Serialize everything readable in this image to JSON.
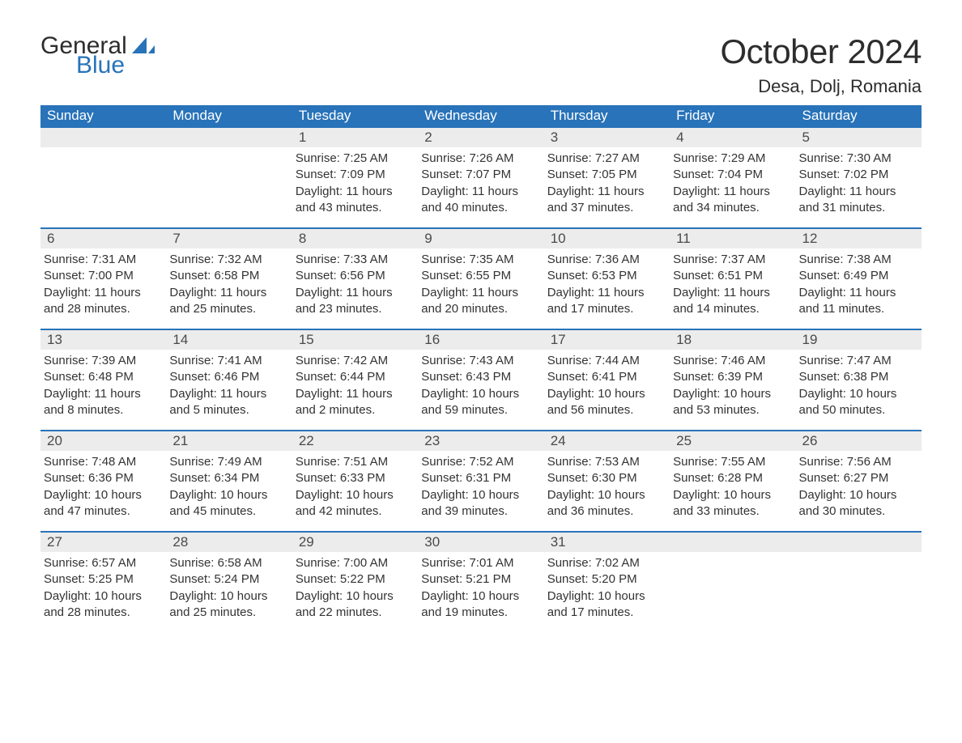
{
  "logo": {
    "text_general": "General",
    "text_blue": "Blue",
    "sail_color": "#2873b9"
  },
  "title": {
    "month": "October 2024",
    "location": "Desa, Dolj, Romania"
  },
  "colors": {
    "header_bg": "#2873b9",
    "header_text": "#ffffff",
    "daynum_bg": "#ececec",
    "rule": "#2873b9",
    "body_text": "#333333"
  },
  "weekdays": [
    "Sunday",
    "Monday",
    "Tuesday",
    "Wednesday",
    "Thursday",
    "Friday",
    "Saturday"
  ],
  "weeks": [
    [
      {
        "day": "",
        "sunrise": "",
        "sunset": "",
        "daylight_a": "",
        "daylight_b": ""
      },
      {
        "day": "",
        "sunrise": "",
        "sunset": "",
        "daylight_a": "",
        "daylight_b": ""
      },
      {
        "day": "1",
        "sunrise": "Sunrise: 7:25 AM",
        "sunset": "Sunset: 7:09 PM",
        "daylight_a": "Daylight: 11 hours",
        "daylight_b": "and 43 minutes."
      },
      {
        "day": "2",
        "sunrise": "Sunrise: 7:26 AM",
        "sunset": "Sunset: 7:07 PM",
        "daylight_a": "Daylight: 11 hours",
        "daylight_b": "and 40 minutes."
      },
      {
        "day": "3",
        "sunrise": "Sunrise: 7:27 AM",
        "sunset": "Sunset: 7:05 PM",
        "daylight_a": "Daylight: 11 hours",
        "daylight_b": "and 37 minutes."
      },
      {
        "day": "4",
        "sunrise": "Sunrise: 7:29 AM",
        "sunset": "Sunset: 7:04 PM",
        "daylight_a": "Daylight: 11 hours",
        "daylight_b": "and 34 minutes."
      },
      {
        "day": "5",
        "sunrise": "Sunrise: 7:30 AM",
        "sunset": "Sunset: 7:02 PM",
        "daylight_a": "Daylight: 11 hours",
        "daylight_b": "and 31 minutes."
      }
    ],
    [
      {
        "day": "6",
        "sunrise": "Sunrise: 7:31 AM",
        "sunset": "Sunset: 7:00 PM",
        "daylight_a": "Daylight: 11 hours",
        "daylight_b": "and 28 minutes."
      },
      {
        "day": "7",
        "sunrise": "Sunrise: 7:32 AM",
        "sunset": "Sunset: 6:58 PM",
        "daylight_a": "Daylight: 11 hours",
        "daylight_b": "and 25 minutes."
      },
      {
        "day": "8",
        "sunrise": "Sunrise: 7:33 AM",
        "sunset": "Sunset: 6:56 PM",
        "daylight_a": "Daylight: 11 hours",
        "daylight_b": "and 23 minutes."
      },
      {
        "day": "9",
        "sunrise": "Sunrise: 7:35 AM",
        "sunset": "Sunset: 6:55 PM",
        "daylight_a": "Daylight: 11 hours",
        "daylight_b": "and 20 minutes."
      },
      {
        "day": "10",
        "sunrise": "Sunrise: 7:36 AM",
        "sunset": "Sunset: 6:53 PM",
        "daylight_a": "Daylight: 11 hours",
        "daylight_b": "and 17 minutes."
      },
      {
        "day": "11",
        "sunrise": "Sunrise: 7:37 AM",
        "sunset": "Sunset: 6:51 PM",
        "daylight_a": "Daylight: 11 hours",
        "daylight_b": "and 14 minutes."
      },
      {
        "day": "12",
        "sunrise": "Sunrise: 7:38 AM",
        "sunset": "Sunset: 6:49 PM",
        "daylight_a": "Daylight: 11 hours",
        "daylight_b": "and 11 minutes."
      }
    ],
    [
      {
        "day": "13",
        "sunrise": "Sunrise: 7:39 AM",
        "sunset": "Sunset: 6:48 PM",
        "daylight_a": "Daylight: 11 hours",
        "daylight_b": "and 8 minutes."
      },
      {
        "day": "14",
        "sunrise": "Sunrise: 7:41 AM",
        "sunset": "Sunset: 6:46 PM",
        "daylight_a": "Daylight: 11 hours",
        "daylight_b": "and 5 minutes."
      },
      {
        "day": "15",
        "sunrise": "Sunrise: 7:42 AM",
        "sunset": "Sunset: 6:44 PM",
        "daylight_a": "Daylight: 11 hours",
        "daylight_b": "and 2 minutes."
      },
      {
        "day": "16",
        "sunrise": "Sunrise: 7:43 AM",
        "sunset": "Sunset: 6:43 PM",
        "daylight_a": "Daylight: 10 hours",
        "daylight_b": "and 59 minutes."
      },
      {
        "day": "17",
        "sunrise": "Sunrise: 7:44 AM",
        "sunset": "Sunset: 6:41 PM",
        "daylight_a": "Daylight: 10 hours",
        "daylight_b": "and 56 minutes."
      },
      {
        "day": "18",
        "sunrise": "Sunrise: 7:46 AM",
        "sunset": "Sunset: 6:39 PM",
        "daylight_a": "Daylight: 10 hours",
        "daylight_b": "and 53 minutes."
      },
      {
        "day": "19",
        "sunrise": "Sunrise: 7:47 AM",
        "sunset": "Sunset: 6:38 PM",
        "daylight_a": "Daylight: 10 hours",
        "daylight_b": "and 50 minutes."
      }
    ],
    [
      {
        "day": "20",
        "sunrise": "Sunrise: 7:48 AM",
        "sunset": "Sunset: 6:36 PM",
        "daylight_a": "Daylight: 10 hours",
        "daylight_b": "and 47 minutes."
      },
      {
        "day": "21",
        "sunrise": "Sunrise: 7:49 AM",
        "sunset": "Sunset: 6:34 PM",
        "daylight_a": "Daylight: 10 hours",
        "daylight_b": "and 45 minutes."
      },
      {
        "day": "22",
        "sunrise": "Sunrise: 7:51 AM",
        "sunset": "Sunset: 6:33 PM",
        "daylight_a": "Daylight: 10 hours",
        "daylight_b": "and 42 minutes."
      },
      {
        "day": "23",
        "sunrise": "Sunrise: 7:52 AM",
        "sunset": "Sunset: 6:31 PM",
        "daylight_a": "Daylight: 10 hours",
        "daylight_b": "and 39 minutes."
      },
      {
        "day": "24",
        "sunrise": "Sunrise: 7:53 AM",
        "sunset": "Sunset: 6:30 PM",
        "daylight_a": "Daylight: 10 hours",
        "daylight_b": "and 36 minutes."
      },
      {
        "day": "25",
        "sunrise": "Sunrise: 7:55 AM",
        "sunset": "Sunset: 6:28 PM",
        "daylight_a": "Daylight: 10 hours",
        "daylight_b": "and 33 minutes."
      },
      {
        "day": "26",
        "sunrise": "Sunrise: 7:56 AM",
        "sunset": "Sunset: 6:27 PM",
        "daylight_a": "Daylight: 10 hours",
        "daylight_b": "and 30 minutes."
      }
    ],
    [
      {
        "day": "27",
        "sunrise": "Sunrise: 6:57 AM",
        "sunset": "Sunset: 5:25 PM",
        "daylight_a": "Daylight: 10 hours",
        "daylight_b": "and 28 minutes."
      },
      {
        "day": "28",
        "sunrise": "Sunrise: 6:58 AM",
        "sunset": "Sunset: 5:24 PM",
        "daylight_a": "Daylight: 10 hours",
        "daylight_b": "and 25 minutes."
      },
      {
        "day": "29",
        "sunrise": "Sunrise: 7:00 AM",
        "sunset": "Sunset: 5:22 PM",
        "daylight_a": "Daylight: 10 hours",
        "daylight_b": "and 22 minutes."
      },
      {
        "day": "30",
        "sunrise": "Sunrise: 7:01 AM",
        "sunset": "Sunset: 5:21 PM",
        "daylight_a": "Daylight: 10 hours",
        "daylight_b": "and 19 minutes."
      },
      {
        "day": "31",
        "sunrise": "Sunrise: 7:02 AM",
        "sunset": "Sunset: 5:20 PM",
        "daylight_a": "Daylight: 10 hours",
        "daylight_b": "and 17 minutes."
      },
      {
        "day": "",
        "sunrise": "",
        "sunset": "",
        "daylight_a": "",
        "daylight_b": ""
      },
      {
        "day": "",
        "sunrise": "",
        "sunset": "",
        "daylight_a": "",
        "daylight_b": ""
      }
    ]
  ]
}
